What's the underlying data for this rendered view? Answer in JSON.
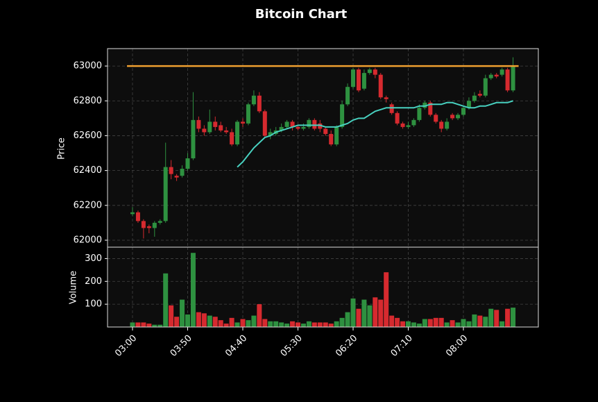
{
  "chart_data": {
    "type": "candlestick",
    "title": "Bitcoin Chart",
    "ylabel": "Price",
    "volume_ylabel": "Volume",
    "x": [
      "03:00",
      null,
      null,
      null,
      null,
      null,
      null,
      null,
      null,
      null,
      "03:50",
      null,
      null,
      null,
      null,
      null,
      null,
      null,
      null,
      null,
      "04:40",
      null,
      null,
      null,
      null,
      null,
      null,
      null,
      null,
      null,
      "05:30",
      null,
      null,
      null,
      null,
      null,
      null,
      null,
      null,
      null,
      "06:20",
      null,
      null,
      null,
      null,
      null,
      null,
      null,
      null,
      null,
      "07:10",
      null,
      null,
      null,
      null,
      null,
      null,
      null,
      null,
      null,
      "08:00",
      null,
      null,
      null,
      null,
      null,
      null,
      null,
      null,
      null
    ],
    "open": [
      62150,
      62160,
      62110,
      62080,
      62070,
      62100,
      62110,
      62420,
      62370,
      62370,
      62410,
      62470,
      62690,
      62640,
      62620,
      62680,
      62660,
      62630,
      62620,
      62550,
      62680,
      62670,
      62780,
      62830,
      62740,
      62600,
      62610,
      62630,
      62650,
      62680,
      62650,
      62640,
      62650,
      62690,
      62670,
      62640,
      62610,
      62550,
      62650,
      62780,
      62880,
      62980,
      62870,
      62960,
      62980,
      62950,
      62820,
      62780,
      62730,
      62670,
      62650,
      62660,
      62690,
      62760,
      62790,
      62720,
      62680,
      62640,
      62720,
      62700,
      62720,
      62760,
      62800,
      62840,
      62830,
      62930,
      62950,
      62950,
      62980,
      62860
    ],
    "high": [
      62190,
      62170,
      62120,
      62090,
      62110,
      62120,
      62560,
      62460,
      62380,
      62430,
      62500,
      62850,
      62710,
      62660,
      62750,
      62710,
      62680,
      62650,
      62640,
      62690,
      62700,
      62790,
      62860,
      62850,
      62750,
      62640,
      62650,
      62670,
      62690,
      62690,
      62660,
      62670,
      62700,
      62700,
      62690,
      62650,
      62630,
      62660,
      62800,
      62900,
      62990,
      62990,
      62980,
      62990,
      62990,
      62960,
      62830,
      62790,
      62740,
      62680,
      62680,
      62700,
      62780,
      62800,
      62800,
      62730,
      62690,
      62700,
      62730,
      62730,
      62770,
      62820,
      62850,
      62860,
      62950,
      62960,
      62960,
      62990,
      62990,
      63050
    ],
    "low": [
      62140,
      62100,
      62010,
      62040,
      62020,
      62090,
      62100,
      62350,
      62340,
      62360,
      62400,
      62460,
      62620,
      62600,
      62610,
      62630,
      62620,
      62610,
      62540,
      62540,
      62650,
      62660,
      62770,
      62730,
      62590,
      62580,
      62600,
      62620,
      62640,
      62630,
      62630,
      62630,
      62640,
      62630,
      62620,
      62600,
      62540,
      62540,
      62640,
      62770,
      62870,
      62850,
      62860,
      62950,
      62930,
      62810,
      62790,
      62720,
      62660,
      62640,
      62640,
      62650,
      62680,
      62750,
      62710,
      62670,
      62620,
      62630,
      62690,
      62690,
      62710,
      62750,
      62790,
      62820,
      62820,
      62920,
      62930,
      62940,
      62850,
      62850
    ],
    "close": [
      62160,
      62110,
      62070,
      62070,
      62100,
      62110,
      62420,
      62380,
      62360,
      62410,
      62470,
      62690,
      62640,
      62620,
      62680,
      62650,
      62630,
      62620,
      62550,
      62680,
      62670,
      62780,
      62830,
      62740,
      62600,
      62620,
      62630,
      62650,
      62680,
      62650,
      62640,
      62650,
      62690,
      62640,
      62640,
      62610,
      62550,
      62650,
      62780,
      62880,
      62980,
      62860,
      62960,
      62980,
      62950,
      62820,
      62810,
      62730,
      62670,
      62650,
      62660,
      62690,
      62760,
      62790,
      62720,
      62680,
      62640,
      62680,
      62700,
      62720,
      62760,
      62800,
      62830,
      62830,
      62930,
      62950,
      62940,
      62980,
      62860,
      63000
    ],
    "volume": [
      20,
      20,
      20,
      15,
      10,
      10,
      235,
      95,
      45,
      120,
      55,
      325,
      65,
      60,
      50,
      45,
      30,
      15,
      40,
      20,
      35,
      30,
      50,
      100,
      35,
      25,
      25,
      20,
      15,
      25,
      20,
      15,
      25,
      20,
      20,
      20,
      15,
      25,
      40,
      65,
      125,
      80,
      120,
      95,
      130,
      120,
      240,
      50,
      40,
      25,
      25,
      20,
      15,
      35,
      35,
      40,
      40,
      20,
      30,
      20,
      35,
      25,
      55,
      50,
      45,
      80,
      75,
      25,
      80,
      85
    ],
    "ma": [
      null,
      null,
      null,
      null,
      null,
      null,
      null,
      null,
      null,
      null,
      null,
      null,
      null,
      null,
      null,
      null,
      null,
      null,
      null,
      62420,
      62450,
      62490,
      62530,
      62560,
      62590,
      62600,
      62620,
      62630,
      62640,
      62650,
      62660,
      62660,
      62660,
      62660,
      62660,
      62650,
      62650,
      62650,
      62660,
      62670,
      62690,
      62700,
      62700,
      62720,
      62740,
      62750,
      62760,
      62760,
      62760,
      62760,
      62760,
      62760,
      62770,
      62770,
      62780,
      62780,
      62780,
      62790,
      62790,
      62780,
      62770,
      62760,
      62760,
      62770,
      62770,
      62780,
      62790,
      62790,
      62790,
      62800
    ],
    "ma_color": "#48d1c0",
    "up_color": "#2e9140",
    "down_color": "#d62a2f",
    "hline": {
      "value": 63000,
      "color": "#f0a030"
    },
    "ylim": [
      61960,
      63100
    ],
    "yticks": [
      62000,
      62200,
      62400,
      62600,
      62800,
      63000
    ],
    "volume_ylim": [
      0,
      350
    ],
    "volume_yticks": [
      100,
      200,
      300
    ],
    "grid": true
  }
}
